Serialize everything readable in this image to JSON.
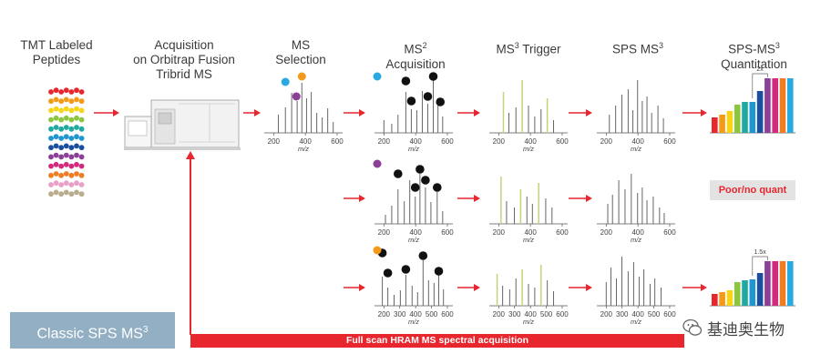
{
  "headers": {
    "tmt": [
      "TMT Labeled",
      "Peptides"
    ],
    "acq": [
      "Acquisition",
      "on Orbitrap Fusion",
      "Tribrid MS"
    ],
    "ms": [
      "MS",
      "Selection"
    ],
    "ms2_main": "MS",
    "ms2_sup": "2",
    "ms2_line2": "Acquisition",
    "trig_main": "MS",
    "trig_sup": "3",
    "trig_rest": " Trigger",
    "sps_main": "SPS MS",
    "sps_sup": "3",
    "quant_main": "SPS-MS",
    "quant_sup": "3",
    "quant_line2": "Quantitation"
  },
  "axis": {
    "ticks_short": [
      "200",
      "400",
      "600"
    ],
    "ticks_long": [
      "200",
      "300",
      "400",
      "500",
      "600"
    ],
    "label": "m/z"
  },
  "quant": {
    "top_multiplier": "2x",
    "bottom_multiplier": "1.5x",
    "bar_colors": [
      "#e7262e",
      "#f39a1b",
      "#f7d417",
      "#8cc63f",
      "#1fa9a0",
      "#1f95d2",
      "#1a4fa0",
      "#8b3f96",
      "#d42a7e",
      "#f07d23",
      "#29a9e0"
    ]
  },
  "poor_quant": "Poor/no quant",
  "classic": {
    "main": "Classic SPS MS",
    "sup": "3"
  },
  "full_scan": "Full scan HRAM MS spectral acquisition",
  "watermark": "基迪奥生物",
  "colors": {
    "arrow_red": "#e7262e",
    "ion_blue": "#29a9e0",
    "ion_orange": "#f39a1b",
    "ion_purple": "#8b3f96",
    "selected_peak": "#c3d477",
    "classic_box": "#93afc3"
  },
  "peptide_row_colors": [
    "#e7262e",
    "#f39a1b",
    "#f7d417",
    "#8cc63f",
    "#1fa9a0",
    "#1f95d2",
    "#1a4fa0",
    "#8b3f96",
    "#d42a7e",
    "#f07d23",
    "#e8a0c8",
    "#b8ad8c"
  ]
}
